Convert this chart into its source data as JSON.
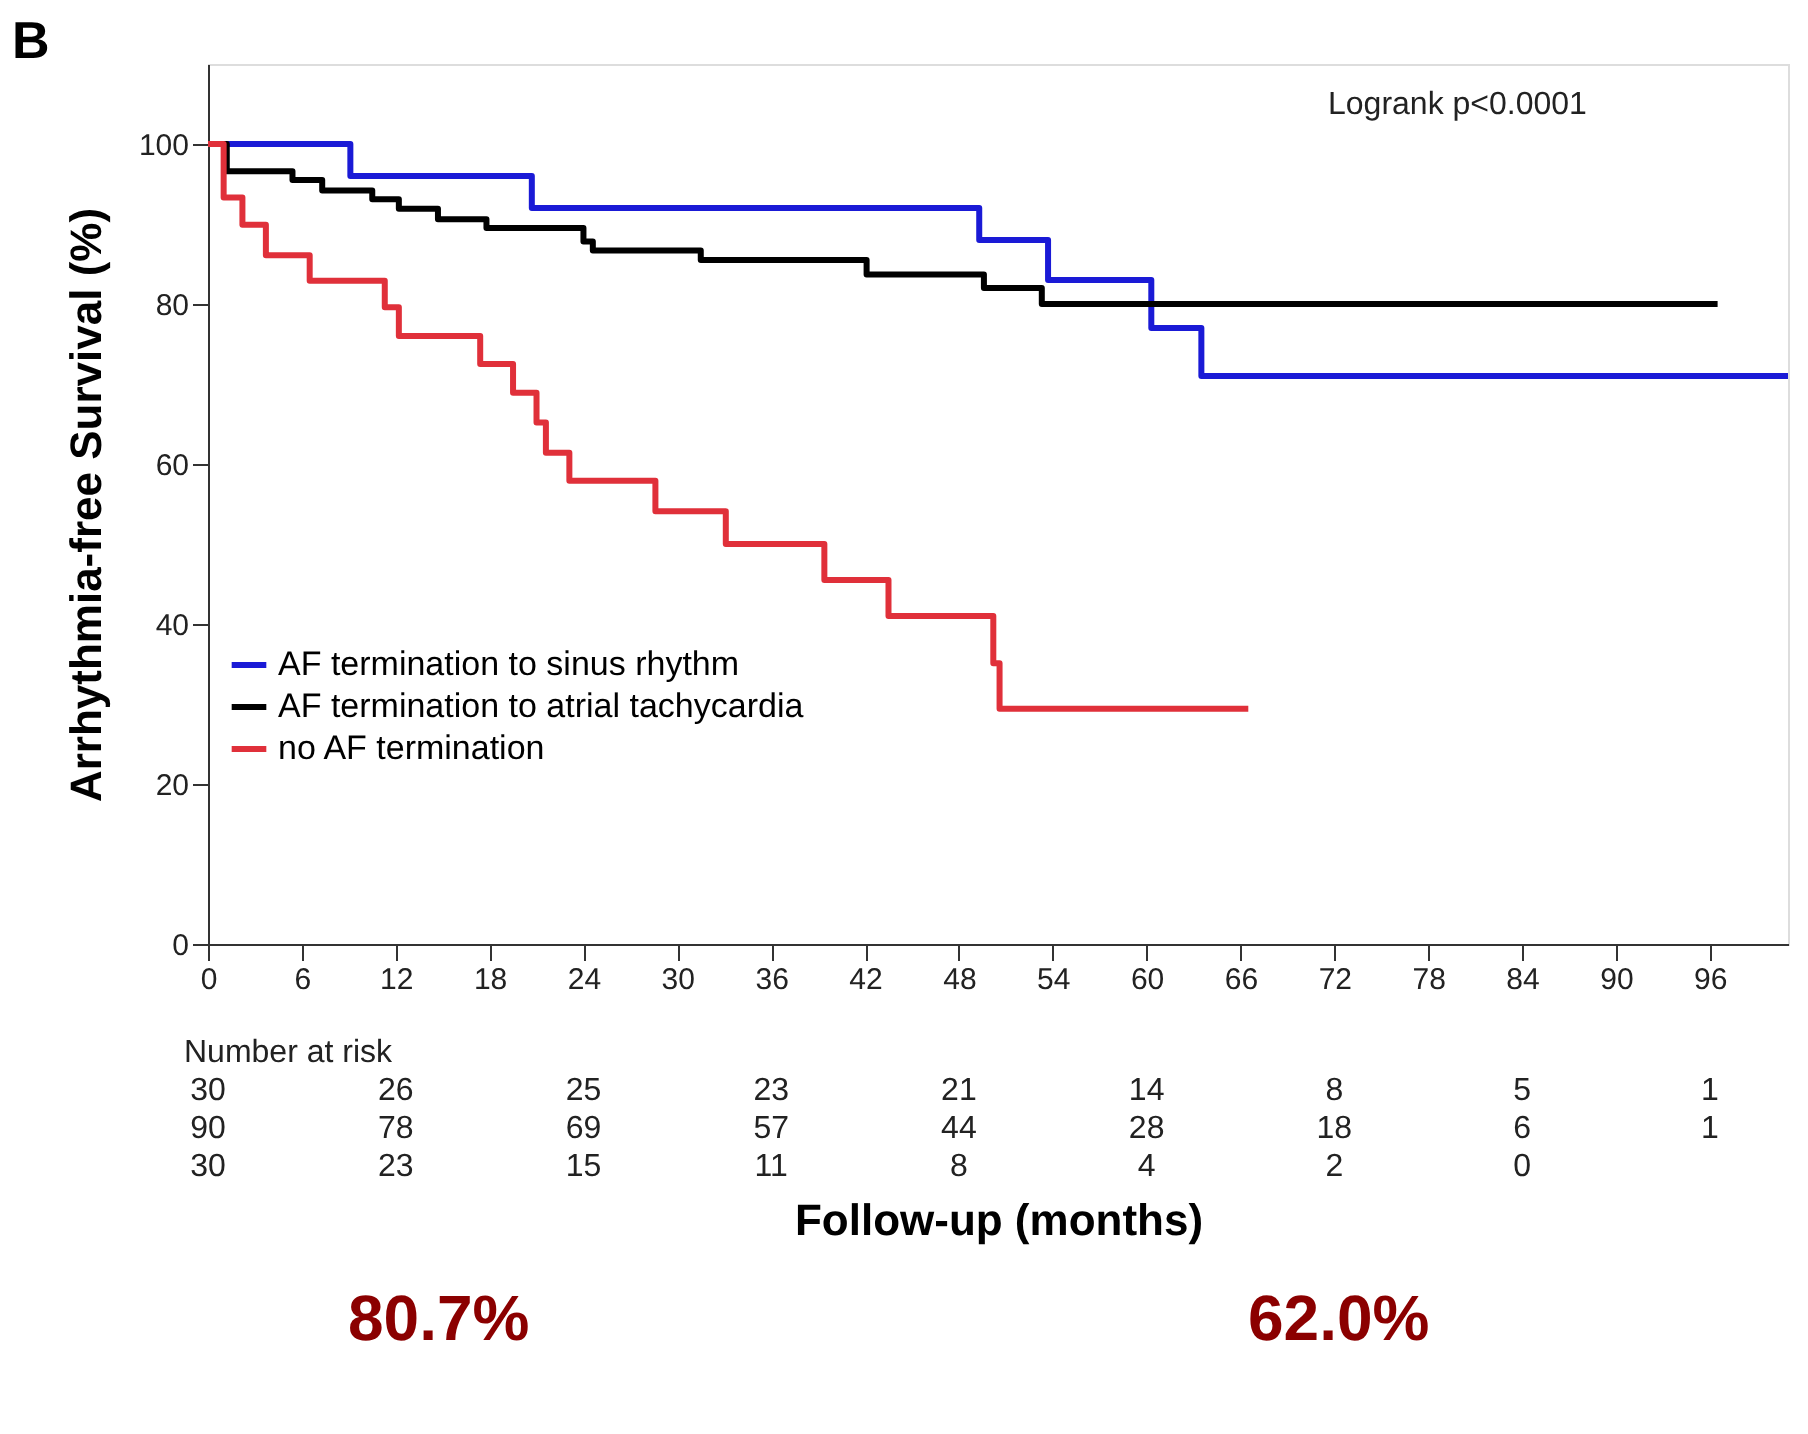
{
  "chart_data": {
    "type": "step",
    "xlabel": "Follow-up (months)",
    "ylabel": "Arrhythmia-free Survival (%)",
    "xlim": [
      0,
      101
    ],
    "ylim": [
      0,
      110
    ],
    "xticks": [
      0,
      6,
      12,
      18,
      24,
      30,
      36,
      42,
      48,
      54,
      60,
      66,
      72,
      78,
      84,
      90,
      96
    ],
    "yticks": [
      0,
      20,
      40,
      60,
      80,
      100
    ],
    "grid": false,
    "legend": "bottom left",
    "line_style": "solid",
    "marker": "none",
    "series": [
      {
        "name": "AF termination to sinus rhythm",
        "color": "#1a1ad6",
        "x": [
          0,
          9.1,
          20.7,
          49.3,
          53.7,
          60.3,
          63.5,
          101
        ],
        "values": [
          100,
          96,
          92,
          88,
          83,
          77,
          71,
          71
        ]
      },
      {
        "name": "AF termination to atrial tachycardia",
        "color": "#000000",
        "x": [
          0,
          1.2,
          5.4,
          7.3,
          10.5,
          12.2,
          14.7,
          17.8,
          24.0,
          24.6,
          31.5,
          42.1,
          49.6,
          53.3,
          96.5
        ],
        "values": [
          100,
          96.6,
          95.5,
          94.2,
          93.1,
          91.9,
          90.6,
          89.5,
          87.8,
          86.7,
          85.5,
          83.7,
          82,
          80,
          80
        ]
      },
      {
        "name": "no AF termination",
        "color": "#e0303a",
        "x": [
          0,
          1.0,
          2.2,
          3.7,
          6.5,
          11.3,
          12.2,
          17.4,
          19.5,
          21.0,
          21.6,
          23.1,
          28.6,
          33.1,
          39.4,
          43.5,
          50.2,
          50.6,
          66.5
        ],
        "values": [
          100,
          93.3,
          89.9,
          86.1,
          82.9,
          79.6,
          76.0,
          72.5,
          68.9,
          65.2,
          61.4,
          57.9,
          54.1,
          50.0,
          45.5,
          41.0,
          35.1,
          29.4,
          29.4
        ]
      }
    ],
    "annotations": [
      "B",
      "Logrank p<0.0001",
      "Number at risk",
      "80.7%",
      "62.0%",
      "30",
      "26",
      "25",
      "23",
      "21",
      "14",
      "8",
      "5",
      "1",
      "90",
      "78",
      "69",
      "57",
      "44",
      "28",
      "18",
      "6",
      "1",
      "30",
      "23",
      "15",
      "11",
      "8",
      "4",
      "2",
      "0"
    ]
  }
}
